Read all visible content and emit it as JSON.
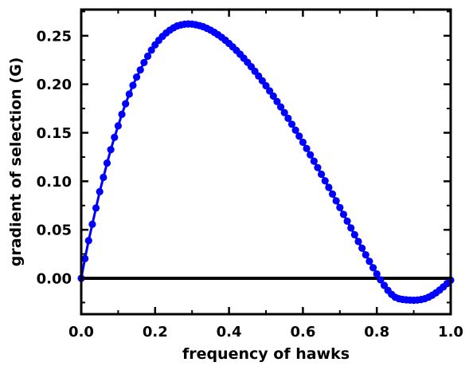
{
  "chart_data": {
    "type": "line",
    "title": "",
    "xlabel": "frequency of hawks",
    "ylabel": "gradient of selection (G)",
    "xlim": [
      0.0,
      1.0
    ],
    "ylim": [
      -0.037,
      0.277
    ],
    "x_ticks": [
      0.0,
      0.2,
      0.4,
      0.6,
      0.8,
      1.0
    ],
    "x_tick_labels": [
      "0.0",
      "0.2",
      "0.4",
      "0.6",
      "0.8",
      "1.0"
    ],
    "y_ticks": [
      0.0,
      0.05,
      0.1,
      0.15,
      0.2,
      0.25
    ],
    "y_tick_labels": [
      "0.00",
      "0.05",
      "0.10",
      "0.15",
      "0.20",
      "0.25"
    ],
    "grid": false,
    "legend": "none",
    "colors": {
      "series": "#0000ff",
      "reference_line": "#000000",
      "axes": "#000000"
    },
    "reference_line": {
      "y": 0.0
    },
    "x": [
      0.0,
      0.01,
      0.02,
      0.03,
      0.04,
      0.05,
      0.06,
      0.07,
      0.08,
      0.09,
      0.1,
      0.11,
      0.12,
      0.13,
      0.14,
      0.15,
      0.16,
      0.17,
      0.18,
      0.19,
      0.2,
      0.21,
      0.22,
      0.23,
      0.24,
      0.25,
      0.26,
      0.27,
      0.28,
      0.29,
      0.3,
      0.31,
      0.32,
      0.33,
      0.34,
      0.35,
      0.36,
      0.37,
      0.38,
      0.39,
      0.4,
      0.41,
      0.42,
      0.43,
      0.44,
      0.45,
      0.46,
      0.47,
      0.48,
      0.49,
      0.5,
      0.51,
      0.52,
      0.53,
      0.54,
      0.55,
      0.56,
      0.57,
      0.58,
      0.59,
      0.6,
      0.61,
      0.62,
      0.63,
      0.64,
      0.65,
      0.66,
      0.67,
      0.68,
      0.69,
      0.7,
      0.71,
      0.72,
      0.73,
      0.74,
      0.75,
      0.76,
      0.77,
      0.78,
      0.79,
      0.8,
      0.81,
      0.82,
      0.83,
      0.84,
      0.85,
      0.86,
      0.87,
      0.88,
      0.89,
      0.9,
      0.91,
      0.92,
      0.93,
      0.94,
      0.95,
      0.96,
      0.97,
      0.98,
      0.99,
      1.0
    ],
    "series": [
      {
        "values": [
          0.0,
          0.0202,
          0.0388,
          0.0557,
          0.0724,
          0.0893,
          0.104,
          0.1188,
          0.1326,
          0.1453,
          0.1571,
          0.169,
          0.1799,
          0.1899,
          0.1989,
          0.2074,
          0.2148,
          0.2224,
          0.2289,
          0.2352,
          0.2406,
          0.2453,
          0.2494,
          0.2529,
          0.2558,
          0.2582,
          0.2602,
          0.2612,
          0.2619,
          0.2622,
          0.262,
          0.2614,
          0.2605,
          0.2593,
          0.2577,
          0.2558,
          0.2536,
          0.2511,
          0.2484,
          0.2454,
          0.2421,
          0.2386,
          0.2349,
          0.231,
          0.2269,
          0.2226,
          0.2181,
          0.2134,
          0.2085,
          0.2036,
          0.1985,
          0.1932,
          0.1878,
          0.1822,
          0.1766,
          0.1708,
          0.1649,
          0.1588,
          0.1527,
          0.1465,
          0.1402,
          0.1338,
          0.1273,
          0.1207,
          0.1141,
          0.1073,
          0.1005,
          0.0937,
          0.0868,
          0.0798,
          0.0729,
          0.0659,
          0.0589,
          0.0519,
          0.0449,
          0.0379,
          0.031,
          0.0242,
          0.0175,
          0.0109,
          0.0045,
          -0.0016,
          -0.0073,
          -0.0124,
          -0.0166,
          -0.0196,
          -0.0211,
          -0.0218,
          -0.0222,
          -0.0225,
          -0.0226,
          -0.0224,
          -0.0219,
          -0.021,
          -0.0195,
          -0.0175,
          -0.015,
          -0.0121,
          -0.0089,
          -0.0054,
          -0.002
        ]
      }
    ]
  }
}
